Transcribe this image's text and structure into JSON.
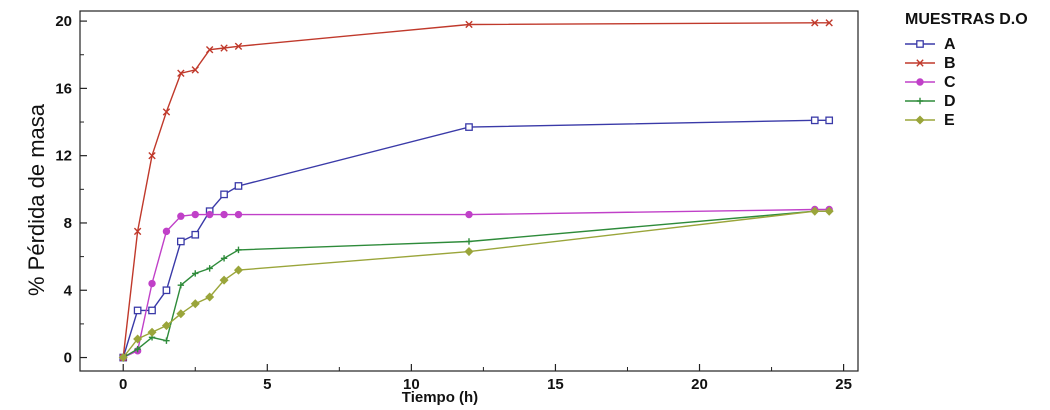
{
  "chart_data": {
    "type": "line",
    "xlabel": "Tiempo (h)",
    "ylabel": "% Pérdida de masa",
    "xlim": [
      -1.5,
      25.5
    ],
    "ylim": [
      -0.8,
      20.6
    ],
    "xticks": [
      0,
      5,
      10,
      15,
      20,
      25
    ],
    "yticks": [
      0,
      4,
      8,
      12,
      16,
      20
    ],
    "grid": false,
    "legend_title": "MUESTRAS D.O",
    "legend_position": "right",
    "series": [
      {
        "name": "A",
        "color": "#3a3aa8",
        "marker": "square",
        "x": [
          0,
          0.5,
          1,
          1.5,
          2,
          2.5,
          3,
          3.5,
          4,
          12,
          24,
          24.5
        ],
        "y": [
          0,
          2.8,
          2.8,
          4.0,
          6.9,
          7.3,
          8.7,
          9.7,
          10.2,
          13.7,
          14.1,
          14.1
        ]
      },
      {
        "name": "B",
        "color": "#c0392b",
        "marker": "x",
        "x": [
          0,
          0.5,
          1,
          1.5,
          2,
          2.5,
          3,
          3.5,
          4,
          12,
          24,
          24.5
        ],
        "y": [
          0,
          7.5,
          12.0,
          14.6,
          16.9,
          17.1,
          18.3,
          18.4,
          18.5,
          19.8,
          19.9,
          19.9
        ]
      },
      {
        "name": "C",
        "color": "#c040c8",
        "marker": "circle",
        "x": [
          0,
          0.5,
          1,
          1.5,
          2,
          2.5,
          3,
          3.5,
          4,
          12,
          24,
          24.5
        ],
        "y": [
          0,
          0.4,
          4.4,
          7.5,
          8.4,
          8.5,
          8.5,
          8.5,
          8.5,
          8.5,
          8.8,
          8.8
        ]
      },
      {
        "name": "D",
        "color": "#2e8b3a",
        "marker": "plus",
        "x": [
          0,
          0.5,
          1,
          1.5,
          2,
          2.5,
          3,
          3.5,
          4,
          12,
          24,
          24.5
        ],
        "y": [
          0,
          0.5,
          1.2,
          1.0,
          4.3,
          5.0,
          5.3,
          5.9,
          6.4,
          6.9,
          8.7,
          8.7
        ]
      },
      {
        "name": "E",
        "color": "#9aa53a",
        "marker": "diamond",
        "x": [
          0,
          0.5,
          1,
          1.5,
          2,
          2.5,
          3,
          3.5,
          4,
          12,
          24,
          24.5
        ],
        "y": [
          0,
          1.1,
          1.5,
          1.9,
          2.6,
          3.2,
          3.6,
          4.6,
          5.2,
          6.3,
          8.7,
          8.7
        ]
      }
    ]
  }
}
